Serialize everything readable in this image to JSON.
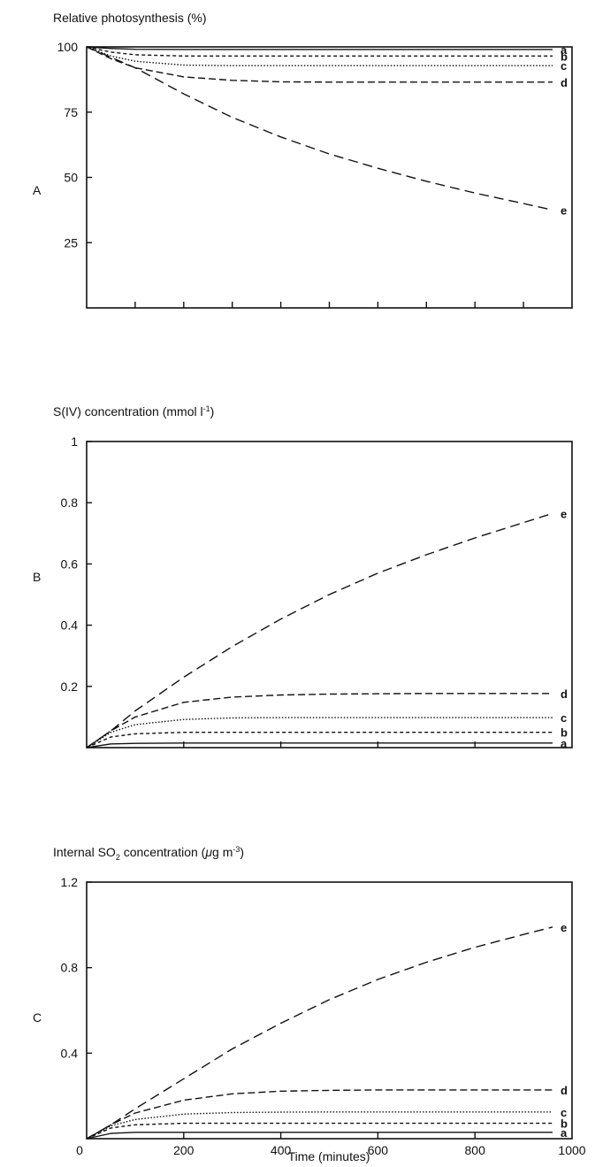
{
  "chart_data": [
    {
      "type": "line",
      "panel_label": "A",
      "title": "Relative photosynthesis (%)",
      "xlabel": "",
      "ylabel": "",
      "xlim": [
        0,
        1000
      ],
      "ylim": [
        0,
        100
      ],
      "yticks": [
        "25",
        "50",
        "75",
        "100"
      ],
      "ytick_values": [
        25,
        50,
        75,
        100
      ],
      "xticks": [],
      "xtick_values": [
        100,
        200,
        300,
        400,
        500,
        600,
        700,
        800,
        900
      ],
      "x": [
        0,
        50,
        100,
        200,
        300,
        400,
        500,
        600,
        700,
        800,
        900,
        960
      ],
      "series": [
        {
          "name": "a",
          "dash": "solid",
          "values": [
            100,
            99.4,
            99.1,
            99,
            99,
            99,
            99,
            99,
            99,
            99,
            99,
            99
          ]
        },
        {
          "name": "b",
          "dash": "short",
          "values": [
            100,
            98,
            97,
            96.5,
            96.5,
            96.5,
            96.5,
            96.5,
            96.5,
            96.5,
            96.5,
            96.5
          ]
        },
        {
          "name": "c",
          "dash": "dotted",
          "values": [
            100,
            96.5,
            94.5,
            93,
            92.8,
            92.8,
            92.8,
            92.8,
            92.8,
            92.8,
            92.8,
            92.8
          ]
        },
        {
          "name": "d",
          "dash": "medium",
          "values": [
            100,
            95.5,
            92,
            88.5,
            87.2,
            86.6,
            86.5,
            86.5,
            86.5,
            86.5,
            86.5,
            86.5
          ]
        },
        {
          "name": "e",
          "dash": "long",
          "values": [
            100,
            96,
            92,
            82,
            73,
            65.5,
            59,
            53.5,
            48.5,
            44,
            40,
            37.5
          ]
        }
      ]
    },
    {
      "type": "line",
      "panel_label": "B",
      "title": "S(IV) concentration (mmol l",
      "title_sup": "-1",
      "title_end": ")",
      "xlabel": "",
      "ylabel": "",
      "xlim": [
        0,
        1000
      ],
      "ylim": [
        0,
        1
      ],
      "yticks": [
        "0.2",
        "0.4",
        "0.6",
        "0.8",
        "1"
      ],
      "ytick_values": [
        0.2,
        0.4,
        0.6,
        0.8,
        1
      ],
      "xticks": [],
      "xtick_values": [
        200,
        400,
        600,
        800
      ],
      "x": [
        0,
        50,
        100,
        200,
        300,
        400,
        500,
        600,
        700,
        800,
        900,
        960
      ],
      "series": [
        {
          "name": "a",
          "dash": "solid",
          "values": [
            0,
            0.012,
            0.014,
            0.015,
            0.015,
            0.015,
            0.015,
            0.015,
            0.015,
            0.015,
            0.015,
            0.015
          ]
        },
        {
          "name": "b",
          "dash": "short",
          "values": [
            0,
            0.035,
            0.045,
            0.05,
            0.05,
            0.05,
            0.05,
            0.05,
            0.05,
            0.05,
            0.05,
            0.05
          ]
        },
        {
          "name": "c",
          "dash": "dotted",
          "values": [
            0,
            0.05,
            0.075,
            0.092,
            0.097,
            0.098,
            0.098,
            0.098,
            0.098,
            0.098,
            0.098,
            0.098
          ]
        },
        {
          "name": "d",
          "dash": "medium",
          "values": [
            0,
            0.055,
            0.1,
            0.148,
            0.165,
            0.172,
            0.175,
            0.176,
            0.177,
            0.177,
            0.177,
            0.177
          ]
        },
        {
          "name": "e",
          "dash": "long",
          "values": [
            0,
            0.055,
            0.12,
            0.23,
            0.33,
            0.42,
            0.5,
            0.57,
            0.63,
            0.685,
            0.735,
            0.765
          ]
        }
      ]
    },
    {
      "type": "line",
      "panel_label": "C",
      "title": "Internal SO",
      "title_sub": "2",
      "title_mid": " concentration (",
      "title_mu": "μ",
      "title_tail": "g m",
      "title_sup": "-3",
      "title_end": ")",
      "xlabel": "Time (minutes)",
      "ylabel": "",
      "xlim": [
        0,
        1000
      ],
      "ylim": [
        0,
        1.2
      ],
      "yticks": [
        "0.4",
        "0.8",
        "1.2"
      ],
      "ytick_values": [
        0.4,
        0.8,
        1.2
      ],
      "xticks": [
        "0",
        "200",
        "400",
        "600",
        "800",
        "1000"
      ],
      "xtick_values": [
        0,
        200,
        400,
        600,
        800,
        1000
      ],
      "x": [
        0,
        50,
        100,
        200,
        300,
        400,
        500,
        600,
        700,
        800,
        900,
        960
      ],
      "series": [
        {
          "name": "a",
          "dash": "solid",
          "values": [
            0,
            0.025,
            0.03,
            0.03,
            0.03,
            0.03,
            0.03,
            0.03,
            0.03,
            0.03,
            0.03,
            0.03
          ]
        },
        {
          "name": "b",
          "dash": "short",
          "values": [
            0,
            0.05,
            0.065,
            0.072,
            0.072,
            0.072,
            0.072,
            0.072,
            0.072,
            0.072,
            0.072,
            0.072
          ]
        },
        {
          "name": "c",
          "dash": "dotted",
          "values": [
            0,
            0.06,
            0.09,
            0.115,
            0.122,
            0.124,
            0.125,
            0.125,
            0.125,
            0.125,
            0.125,
            0.125
          ]
        },
        {
          "name": "d",
          "dash": "medium",
          "values": [
            0,
            0.065,
            0.12,
            0.18,
            0.21,
            0.222,
            0.226,
            0.228,
            0.228,
            0.228,
            0.228,
            0.228
          ]
        },
        {
          "name": "e",
          "dash": "long",
          "values": [
            0,
            0.065,
            0.14,
            0.28,
            0.42,
            0.54,
            0.65,
            0.745,
            0.825,
            0.895,
            0.955,
            0.99
          ]
        }
      ]
    }
  ]
}
